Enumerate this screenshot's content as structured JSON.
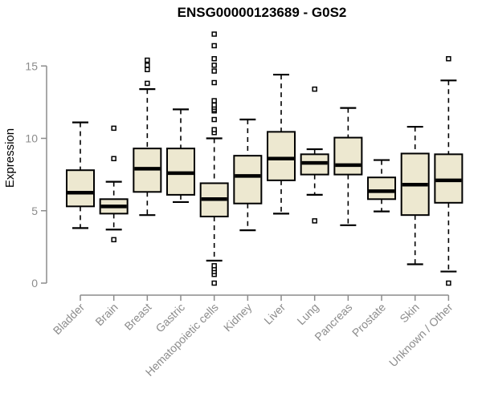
{
  "chart_data": {
    "type": "boxplot",
    "title": "ENSG00000123689 - G0S2",
    "ylabel": "Expression",
    "xlabel": "",
    "ylim": [
      0,
      17.5
    ],
    "yticks": [
      0,
      5,
      10,
      15
    ],
    "ytick_labels": [
      "0",
      "5",
      "10",
      "15"
    ],
    "grid": "off",
    "legend": "none",
    "categories": [
      "Bladder",
      "Brain",
      "Breast",
      "Gastric",
      "Hematopoietic cells",
      "Kidney",
      "Liver",
      "Lung",
      "Pancreas",
      "Prostate",
      "Skin",
      "Unknown / Other"
    ],
    "boxes": [
      {
        "category": "Bladder",
        "low": 3.8,
        "q1": 5.3,
        "median": 6.25,
        "q3": 7.8,
        "high": 11.1,
        "outliers": []
      },
      {
        "category": "Brain",
        "low": 3.7,
        "q1": 4.8,
        "median": 5.3,
        "q3": 5.8,
        "high": 7.0,
        "outliers": [
          3.0,
          8.6,
          10.7
        ]
      },
      {
        "category": "Breast",
        "low": 4.7,
        "q1": 6.3,
        "median": 7.9,
        "q3": 9.3,
        "high": 13.4,
        "outliers": [
          13.8,
          14.75,
          15.05,
          15.4
        ]
      },
      {
        "category": "Gastric",
        "low": 5.6,
        "q1": 6.1,
        "median": 7.6,
        "q3": 9.3,
        "high": 12.0,
        "outliers": []
      },
      {
        "category": "Hematopoietic cells",
        "low": 1.55,
        "q1": 4.6,
        "median": 5.8,
        "q3": 6.9,
        "high": 10.0,
        "outliers": [
          0.0,
          0.6,
          0.8,
          1.0,
          1.2,
          10.4,
          10.6,
          11.3,
          11.9,
          12.0,
          12.15,
          12.3,
          12.6,
          13.85,
          14.65,
          15.05,
          15.5,
          16.4,
          17.2
        ]
      },
      {
        "category": "Kidney",
        "low": 3.65,
        "q1": 5.5,
        "median": 7.4,
        "q3": 8.8,
        "high": 11.3,
        "outliers": []
      },
      {
        "category": "Liver",
        "low": 4.8,
        "q1": 7.1,
        "median": 8.6,
        "q3": 10.45,
        "high": 14.4,
        "outliers": []
      },
      {
        "category": "Lung",
        "low": 6.1,
        "q1": 7.5,
        "median": 8.3,
        "q3": 8.9,
        "high": 9.25,
        "outliers": [
          4.3,
          13.4
        ]
      },
      {
        "category": "Pancreas",
        "low": 4.0,
        "q1": 7.5,
        "median": 8.15,
        "q3": 10.05,
        "high": 12.1,
        "outliers": []
      },
      {
        "category": "Prostate",
        "low": 4.95,
        "q1": 5.8,
        "median": 6.35,
        "q3": 7.3,
        "high": 8.5,
        "outliers": []
      },
      {
        "category": "Skin",
        "low": 1.3,
        "q1": 4.7,
        "median": 6.8,
        "q3": 8.95,
        "high": 10.8,
        "outliers": []
      },
      {
        "category": "Unknown / Other",
        "low": 0.8,
        "q1": 5.55,
        "median": 7.1,
        "q3": 8.9,
        "high": 14.0,
        "outliers": [
          0.0,
          15.5
        ]
      }
    ],
    "colors": {
      "box_fill": "#EDE8D0",
      "box_border": "#000000",
      "median": "#000000",
      "whisker": "#000000",
      "outlier_stroke": "#000000",
      "outlier_fill": "#FFFFFF",
      "axis": "#8C8C8C",
      "tick_label": "#8C8C8C",
      "axis_label": "#8C8C8C",
      "title": "#000000",
      "background": "#FFFFFF"
    }
  }
}
